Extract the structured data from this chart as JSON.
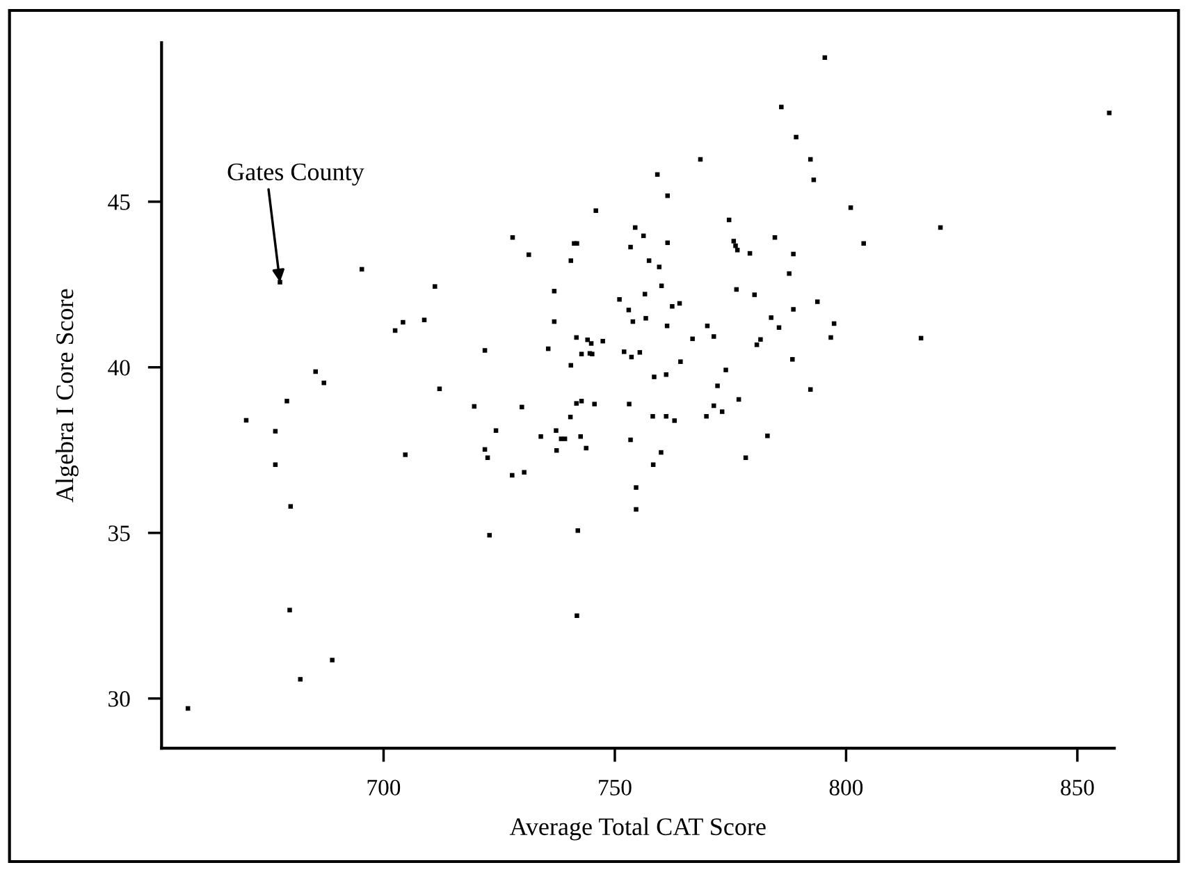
{
  "chart_data": {
    "type": "scatter",
    "xlabel": "Average Total CAT Score",
    "ylabel": "Algebra I Core Score",
    "xlim": [
      652,
      858
    ],
    "ylim": [
      28.5,
      49.8
    ],
    "xticks": [
      700,
      750,
      800,
      850
    ],
    "yticks": [
      30,
      35,
      40,
      45
    ],
    "grid": false,
    "legend": false,
    "marker": "square",
    "annotations": [
      {
        "text": "Gates County",
        "x": 677.6,
        "y": 42.57
      }
    ],
    "series": [
      {
        "color": "#000000",
        "x": [
          657.7,
          670.3,
          676.6,
          676.6,
          677.6,
          679.1,
          679.9,
          679.7,
          682.0,
          685.3,
          687.1,
          688.9,
          695.3,
          702.5,
          704.2,
          704.7,
          708.8,
          711.1,
          712.1,
          719.6,
          721.9,
          721.9,
          722.5,
          722.9,
          724.3,
          727.9,
          727.8,
          729.9,
          730.4,
          731.4,
          734.0,
          735.6,
          736.9,
          736.9,
          737.3,
          737.4,
          738.4,
          739.2,
          740.4,
          740.5,
          740.5,
          741.2,
          741.8,
          741.7,
          741.7,
          742.0,
          741.8,
          742.6,
          742.8,
          742.8,
          743.8,
          744.1,
          744.6,
          744.9,
          745.1,
          745.6,
          745.9,
          747.4,
          751.0,
          752.0,
          753.0,
          753.1,
          753.4,
          753.4,
          753.9,
          753.6,
          754.4,
          754.6,
          754.6,
          755.4,
          756.2,
          756.5,
          756.7,
          757.4,
          758.2,
          758.3,
          758.5,
          759.2,
          759.6,
          760.0,
          760.1,
          761.1,
          761.1,
          761.4,
          761.3,
          761.4,
          762.4,
          762.9,
          764.0,
          764.2,
          766.8,
          768.5,
          770.0,
          769.8,
          771.4,
          771.4,
          772.2,
          773.2,
          774.0,
          774.7,
          775.7,
          776.1,
          776.5,
          776.3,
          776.8,
          778.3,
          779.2,
          780.2,
          780.7,
          781.5,
          783.0,
          783.8,
          784.6,
          785.5,
          786.0,
          787.7,
          788.6,
          788.6,
          788.4,
          789.2,
          792.3,
          792.3,
          793.0,
          793.8,
          795.4,
          796.7,
          797.4,
          801.0,
          803.8,
          816.2,
          820.4,
          856.9
        ],
        "values": [
          29.7,
          38.4,
          38.07,
          37.06,
          42.57,
          38.98,
          35.8,
          32.67,
          30.58,
          39.87,
          39.53,
          31.16,
          42.96,
          41.11,
          41.36,
          37.36,
          41.43,
          42.44,
          39.35,
          38.82,
          40.51,
          37.52,
          37.27,
          34.93,
          38.09,
          43.92,
          36.74,
          38.8,
          36.83,
          43.4,
          37.91,
          40.56,
          42.3,
          41.38,
          38.09,
          37.49,
          37.84,
          37.84,
          38.5,
          43.22,
          40.06,
          43.74,
          43.74,
          40.9,
          38.91,
          35.07,
          32.5,
          37.91,
          38.98,
          40.4,
          37.56,
          40.83,
          40.42,
          40.72,
          40.4,
          38.89,
          44.73,
          40.79,
          42.05,
          40.47,
          41.73,
          38.89,
          43.63,
          37.81,
          41.38,
          40.31,
          44.22,
          36.37,
          35.71,
          40.45,
          43.97,
          42.21,
          41.48,
          43.22,
          38.52,
          37.06,
          39.71,
          45.82,
          43.03,
          37.43,
          42.46,
          38.52,
          39.78,
          43.76,
          41.25,
          45.18,
          41.84,
          38.39,
          41.93,
          40.17,
          40.86,
          46.28,
          41.25,
          38.52,
          40.93,
          38.84,
          39.44,
          38.66,
          39.92,
          44.45,
          43.81,
          43.67,
          43.54,
          42.35,
          39.03,
          37.27,
          43.44,
          42.19,
          40.68,
          40.84,
          37.93,
          41.5,
          43.92,
          41.2,
          47.86,
          42.83,
          43.42,
          41.75,
          40.24,
          46.95,
          46.28,
          39.33,
          45.66,
          41.98,
          49.35,
          40.9,
          41.32,
          44.82,
          43.74,
          40.88,
          44.22,
          47.68
        ]
      }
    ]
  }
}
